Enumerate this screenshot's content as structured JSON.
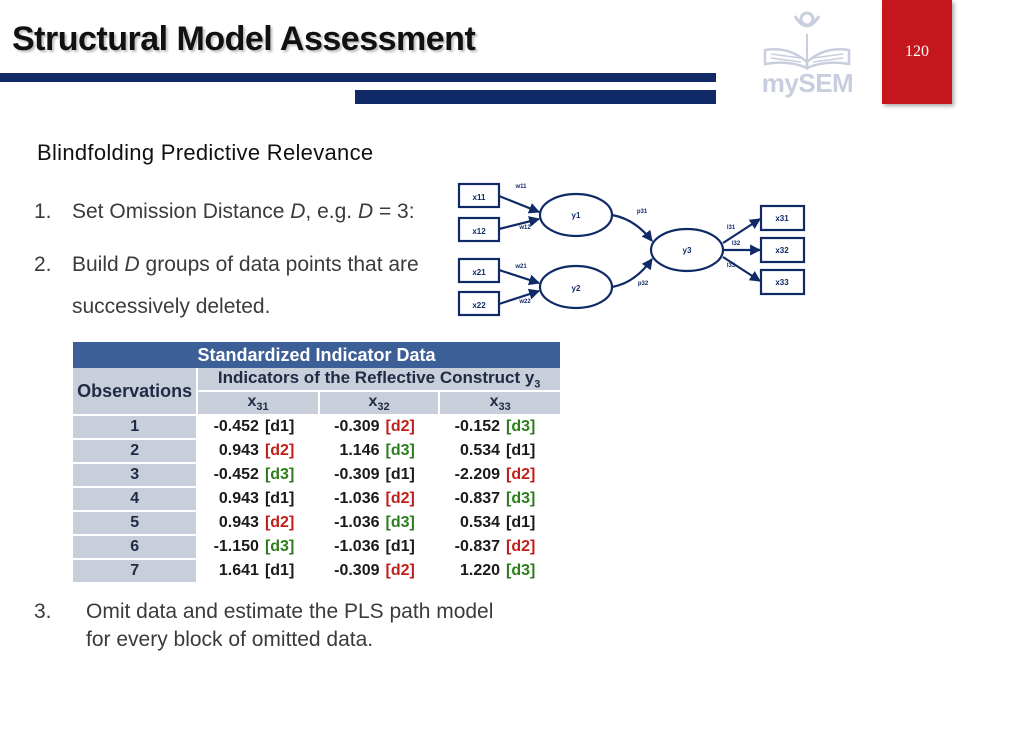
{
  "slide": {
    "title": "Structural Model Assessment",
    "page_number": "120",
    "logo_text": "mySEM",
    "subtitle": "Blindfolding Predictive Relevance"
  },
  "steps": [
    {
      "num": "1.",
      "prefix": "Set Omission Distance ",
      "var1": "D",
      "middle": ", e.g. ",
      "var2": "D",
      "suffix": " = 3:"
    },
    {
      "num": "2.",
      "prefix": "Build ",
      "var1": "D",
      "line1_suffix": " groups of data points that are",
      "line2": "successively deleted."
    },
    {
      "num": "3.",
      "line1": "Omit data and estimate the PLS path model",
      "line2": "for every block of omitted data."
    }
  ],
  "diagram": {
    "indicators_left": [
      "x11",
      "x12",
      "x21",
      "x22"
    ],
    "weights": [
      "w11",
      "w12",
      "w21",
      "w22"
    ],
    "latents": [
      "y1",
      "y2",
      "y3"
    ],
    "paths": [
      "p31",
      "p32"
    ],
    "loadings": [
      "l31",
      "l32",
      "l33"
    ],
    "indicators_right": [
      "x31",
      "x32",
      "x33"
    ]
  },
  "table": {
    "title": "Standardized Indicator Data",
    "obs_header": "Observations",
    "group_header": "Indicators of the Reflective Construct y",
    "group_header_sub": "3",
    "columns": [
      {
        "base": "x",
        "sub": "31"
      },
      {
        "base": "x",
        "sub": "32"
      },
      {
        "base": "x",
        "sub": "33"
      }
    ],
    "rows": [
      {
        "obs": "1",
        "cells": [
          [
            "-0.452",
            "[d1]"
          ],
          [
            "-0.309",
            "[d2]"
          ],
          [
            "-0.152",
            "[d3]"
          ]
        ]
      },
      {
        "obs": "2",
        "cells": [
          [
            "0.943",
            "[d2]"
          ],
          [
            "1.146",
            "[d3]"
          ],
          [
            "0.534",
            "[d1]"
          ]
        ]
      },
      {
        "obs": "3",
        "cells": [
          [
            "-0.452",
            "[d3]"
          ],
          [
            "-0.309",
            "[d1]"
          ],
          [
            "-2.209",
            "[d2]"
          ]
        ]
      },
      {
        "obs": "4",
        "cells": [
          [
            "0.943",
            "[d1]"
          ],
          [
            "-1.036",
            "[d2]"
          ],
          [
            "-0.837",
            "[d3]"
          ]
        ]
      },
      {
        "obs": "5",
        "cells": [
          [
            "0.943",
            "[d2]"
          ],
          [
            "-1.036",
            "[d3]"
          ],
          [
            "0.534",
            "[d1]"
          ]
        ]
      },
      {
        "obs": "6",
        "cells": [
          [
            "-1.150",
            "[d3]"
          ],
          [
            "-1.036",
            "[d1]"
          ],
          [
            "-0.837",
            "[d2]"
          ]
        ]
      },
      {
        "obs": "7",
        "cells": [
          [
            "1.641",
            "[d1]"
          ],
          [
            "-0.309",
            "[d2]"
          ],
          [
            "1.220",
            "[d3]"
          ]
        ]
      }
    ]
  },
  "colors": {
    "navy": "#0f2a66",
    "page_red": "#c4161c",
    "table_header": "#3d5f97",
    "table_shade": "#c8cfdb",
    "d1": "#1a1a1a",
    "d2": "#c0201c",
    "d3": "#2e7d1e"
  }
}
